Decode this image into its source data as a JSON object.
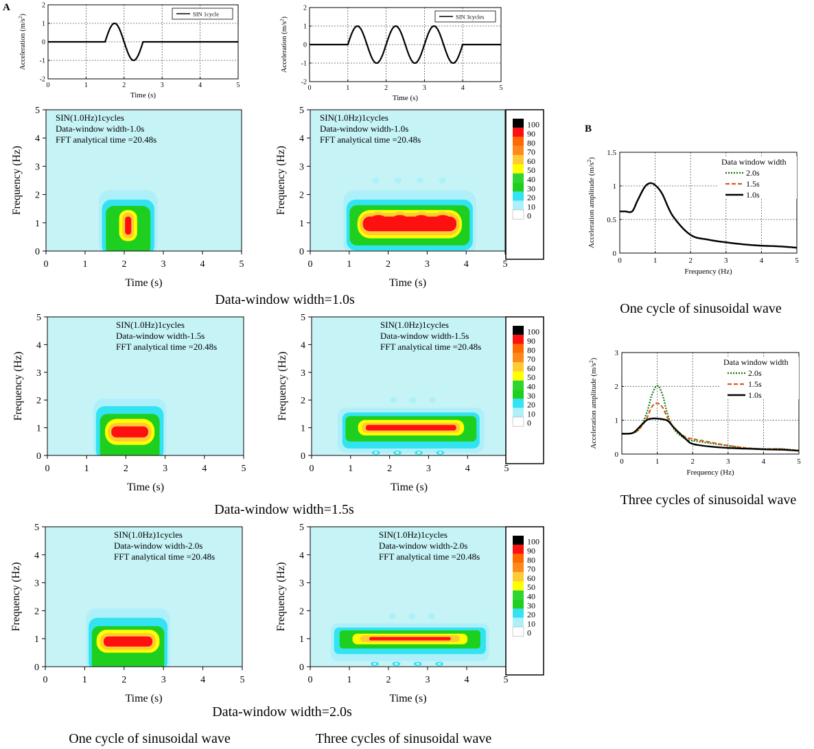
{
  "panel_labels": {
    "a": "A",
    "b": "B"
  },
  "common": {
    "time_label": "Time (s)",
    "freq_label": "Frequency (Hz)",
    "accel_label": "Acceleration (m/s",
    "accel_label_tail": ")",
    "accel_sup": "2",
    "amp_label": "Acceleration amplitude (m/s",
    "amp_label_tail": ")",
    "amp_sup": "2",
    "freq_label_b": "Frequency (Hz)"
  },
  "colors": {
    "bg": "#c6f3f6",
    "levels": [
      "#ffffff",
      "#aef0fa",
      "#33e3f2",
      "#1fcf1f",
      "#2fd62f",
      "#ffff00",
      "#ffca32",
      "#ff8a1c",
      "#ff6a00",
      "#ff1010",
      "#000000"
    ],
    "dark_green": "#1a7a1a",
    "orange": "#d65a1a"
  },
  "colorbar_labels": [
    "100",
    "90",
    "80",
    "70",
    "60",
    "50",
    "40",
    "30",
    "20",
    "10",
    "0"
  ],
  "rows": [
    {
      "caption": "Data-window width=1.0s",
      "left_text": [
        "SIN(1.0Hz)1cycles",
        "Data-window width-1.0s",
        "FFT analytical time =20.48s"
      ],
      "right_text": [
        "SIN(1.0Hz)1cycles",
        "Data-window width-1.0s",
        "FFT analytical time =20.48s"
      ]
    },
    {
      "caption": "Data-window width=1.5s",
      "left_text": [
        "SIN(1.0Hz)1cycles",
        "Data-window width-1.5s",
        "FFT analytical time =20.48s"
      ],
      "right_text": [
        "SIN(1.0Hz)1cycles",
        "Data-window width-1.5s",
        "FFT analytical time =20.48s"
      ]
    },
    {
      "caption": "Data-window width=2.0s",
      "left_text": [
        "SIN(1.0Hz)1cycles",
        "Data-window width-2.0s",
        "FFT analytical time =20.48s"
      ],
      "right_text": [
        "SIN(1.0Hz)1cycles",
        "Data-window width-2.0s",
        "FFT analytical time =20.48s"
      ]
    }
  ],
  "bottom_captions": {
    "left": "One cycle of sinusoidal wave",
    "right": "Three cycles of sinusoidal wave"
  },
  "b_captions": {
    "top": "One cycle of sinusoidal wave",
    "bottom": "Three cycles of sinusoidal wave"
  },
  "chart_data": [
    {
      "type": "line",
      "id": "wave1",
      "legend": "SIN 1cycle",
      "xlabel": "Time (s)",
      "ylabel": "Acceleration (m/s2)",
      "xlim": [
        0,
        5
      ],
      "ylim": [
        -2,
        2
      ],
      "xticks": [
        0,
        1,
        2,
        3,
        4,
        5
      ],
      "yticks": [
        -2,
        -1,
        0,
        1,
        2
      ],
      "x": [
        0,
        1.5,
        1.75,
        2.0,
        2.25,
        2.5,
        5
      ],
      "y": [
        0,
        0,
        1,
        0,
        -1,
        0,
        0
      ]
    },
    {
      "type": "line",
      "id": "wave3",
      "legend": "SIN 3cycles",
      "xlabel": "Time (s)",
      "ylabel": "Acceleration (m/s2)",
      "xlim": [
        0,
        5
      ],
      "ylim": [
        -2,
        2
      ],
      "xticks": [
        0,
        1,
        2,
        3,
        4,
        5
      ],
      "yticks": [
        -2,
        -1,
        0,
        1,
        2
      ],
      "x": [
        0,
        1.0,
        1.25,
        1.5,
        1.75,
        2.0,
        2.25,
        2.5,
        2.75,
        3.0,
        3.25,
        3.5,
        3.75,
        4.0,
        5
      ],
      "y": [
        0,
        0,
        1,
        0,
        -1,
        0,
        1,
        0,
        -1,
        0,
        1,
        0,
        -1,
        0,
        0
      ]
    },
    {
      "type": "heatmap",
      "id": "ts-1-1cyc",
      "xlim": [
        0,
        5
      ],
      "ylim": [
        0,
        5
      ],
      "xticks": [
        0,
        1,
        2,
        3,
        4,
        5
      ],
      "yticks": [
        0,
        1,
        2,
        3,
        4,
        5
      ],
      "levels": [
        0,
        10,
        20,
        30,
        40,
        50,
        60,
        70,
        80,
        90,
        100
      ]
    },
    {
      "type": "heatmap",
      "id": "ts-1-3cyc",
      "xlim": [
        0,
        5
      ],
      "ylim": [
        0,
        5
      ],
      "xticks": [
        0,
        1,
        2,
        3,
        4,
        5
      ],
      "yticks": [
        0,
        1,
        2,
        3,
        4,
        5
      ],
      "levels": [
        0,
        10,
        20,
        30,
        40,
        50,
        60,
        70,
        80,
        90,
        100
      ]
    },
    {
      "type": "heatmap",
      "id": "ts-1.5-1cyc",
      "xlim": [
        0,
        5
      ],
      "ylim": [
        0,
        5
      ],
      "xticks": [
        0,
        1,
        2,
        3,
        4,
        5
      ],
      "yticks": [
        0,
        1,
        2,
        3,
        4,
        5
      ],
      "levels": [
        0,
        10,
        20,
        30,
        40,
        50,
        60,
        70,
        80,
        90,
        100
      ]
    },
    {
      "type": "heatmap",
      "id": "ts-1.5-3cyc",
      "xlim": [
        0,
        5
      ],
      "ylim": [
        0,
        5
      ],
      "xticks": [
        0,
        1,
        2,
        3,
        4,
        5
      ],
      "yticks": [
        0,
        1,
        2,
        3,
        4,
        5
      ],
      "levels": [
        0,
        10,
        20,
        30,
        40,
        50,
        60,
        70,
        80,
        90,
        100
      ]
    },
    {
      "type": "heatmap",
      "id": "ts-2-1cyc",
      "xlim": [
        0,
        5
      ],
      "ylim": [
        0,
        5
      ],
      "xticks": [
        0,
        1,
        2,
        3,
        4,
        5
      ],
      "yticks": [
        0,
        1,
        2,
        3,
        4,
        5
      ],
      "levels": [
        0,
        10,
        20,
        30,
        40,
        50,
        60,
        70,
        80,
        90,
        100
      ]
    },
    {
      "type": "heatmap",
      "id": "ts-2-3cyc",
      "xlim": [
        0,
        5
      ],
      "ylim": [
        0,
        5
      ],
      "xticks": [
        0,
        1,
        2,
        3,
        4,
        5
      ],
      "yticks": [
        0,
        1,
        2,
        3,
        4,
        5
      ],
      "levels": [
        0,
        10,
        20,
        30,
        40,
        50,
        60,
        70,
        80,
        90,
        100
      ]
    },
    {
      "type": "line",
      "id": "spec1",
      "legend_title": "Data window width",
      "xlabel": "Frequency (Hz)",
      "ylabel": "Acceleration amplitude (m/s2)",
      "xlim": [
        0,
        5
      ],
      "ylim": [
        0,
        1.5
      ],
      "xticks": [
        0,
        1,
        2,
        3,
        4,
        5
      ],
      "yticks": [
        0,
        0.5,
        1,
        1.5
      ],
      "series": [
        {
          "name": "2.0s",
          "style": "dotted-green",
          "x": [
            0,
            0.15,
            0.35,
            0.5,
            0.7,
            0.85,
            1.0,
            1.2,
            1.5,
            2.0,
            2.5,
            3.0,
            3.5,
            4.0,
            4.5,
            5.0
          ],
          "y": [
            0.62,
            0.62,
            0.62,
            0.78,
            0.98,
            1.04,
            1.01,
            0.88,
            0.55,
            0.27,
            0.2,
            0.16,
            0.13,
            0.11,
            0.1,
            0.08
          ]
        },
        {
          "name": "1.5s",
          "style": "dashed-orange",
          "x": [
            0,
            0.15,
            0.35,
            0.5,
            0.7,
            0.85,
            1.0,
            1.2,
            1.5,
            2.0,
            2.5,
            3.0,
            3.5,
            4.0,
            4.5,
            5.0
          ],
          "y": [
            0.62,
            0.62,
            0.62,
            0.78,
            0.98,
            1.04,
            1.01,
            0.88,
            0.55,
            0.27,
            0.2,
            0.16,
            0.13,
            0.11,
            0.1,
            0.08
          ]
        },
        {
          "name": "1.0s",
          "style": "solid-black",
          "x": [
            0,
            0.15,
            0.35,
            0.5,
            0.7,
            0.85,
            1.0,
            1.2,
            1.5,
            2.0,
            2.5,
            3.0,
            3.5,
            4.0,
            4.5,
            5.0
          ],
          "y": [
            0.62,
            0.62,
            0.62,
            0.78,
            0.98,
            1.04,
            1.01,
            0.88,
            0.55,
            0.27,
            0.2,
            0.16,
            0.13,
            0.11,
            0.1,
            0.08
          ]
        }
      ]
    },
    {
      "type": "line",
      "id": "spec3",
      "legend_title": "Data window width",
      "xlabel": "Frequency (Hz)",
      "ylabel": "Acceleration amplitude (m/s2)",
      "xlim": [
        0,
        5
      ],
      "ylim": [
        0,
        3
      ],
      "xticks": [
        0,
        1,
        2,
        3,
        4,
        5
      ],
      "yticks": [
        0,
        1,
        2,
        3
      ],
      "series": [
        {
          "name": "2.0s",
          "style": "dotted-green",
          "x": [
            0,
            0.3,
            0.5,
            0.7,
            0.85,
            1.0,
            1.15,
            1.3,
            1.5,
            1.8,
            2.0,
            2.5,
            3.0,
            3.5,
            4.0,
            4.5,
            5.0
          ],
          "y": [
            0.6,
            0.62,
            0.75,
            1.2,
            1.75,
            2.02,
            1.75,
            1.15,
            0.7,
            0.45,
            0.4,
            0.32,
            0.25,
            0.18,
            0.15,
            0.15,
            0.1
          ]
        },
        {
          "name": "1.5s",
          "style": "dashed-orange",
          "x": [
            0,
            0.3,
            0.5,
            0.7,
            0.85,
            1.0,
            1.15,
            1.3,
            1.5,
            1.8,
            2.0,
            2.5,
            3.0,
            3.5,
            4.0,
            4.5,
            5.0
          ],
          "y": [
            0.6,
            0.62,
            0.75,
            1.05,
            1.4,
            1.5,
            1.38,
            1.05,
            0.75,
            0.5,
            0.45,
            0.35,
            0.25,
            0.18,
            0.15,
            0.15,
            0.1
          ]
        },
        {
          "name": "1.0s",
          "style": "solid-black",
          "x": [
            0,
            0.3,
            0.5,
            0.7,
            0.85,
            1.0,
            1.15,
            1.3,
            1.5,
            1.8,
            2.0,
            2.5,
            3.0,
            3.5,
            4.0,
            4.5,
            5.0
          ],
          "y": [
            0.6,
            0.62,
            0.8,
            1.0,
            1.05,
            1.05,
            1.03,
            0.98,
            0.75,
            0.45,
            0.3,
            0.22,
            0.18,
            0.16,
            0.14,
            0.13,
            0.1
          ]
        }
      ]
    }
  ]
}
